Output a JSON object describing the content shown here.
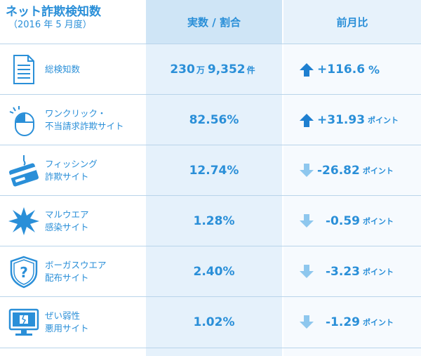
{
  "header": {
    "title": "ネット詐欺検知数",
    "subtitle": "（2016 年 5 月度）",
    "col_value": "実数 / 割合",
    "col_change": "前月比"
  },
  "colors": {
    "text": "#2a8fd8",
    "arrow_up": "#1e7fd0",
    "arrow_down": "#8ec7ee",
    "col_bg": "#e5f1fb",
    "header_bg": "#cfe5f6"
  },
  "rows": [
    {
      "icon": "document-icon",
      "label_lines": [
        "総検知数"
      ],
      "value_a": "230",
      "value_unit_a": "万",
      "value_b": "9,352",
      "value_unit_b": "件",
      "direction": "up",
      "change": "+116.6",
      "change_unit": "%"
    },
    {
      "icon": "mouse-click-icon",
      "label_lines": [
        "ワンクリック・",
        "不当請求詐欺サイト"
      ],
      "value": "82.56%",
      "direction": "up",
      "change": "+31.93",
      "change_unit": "ポイント"
    },
    {
      "icon": "credit-card-hook-icon",
      "label_lines": [
        "フィッシング",
        "詐欺サイト"
      ],
      "value": "12.74%",
      "direction": "down",
      "change": "-26.82",
      "change_unit": "ポイント"
    },
    {
      "icon": "malware-burst-icon",
      "label_lines": [
        "マルウエア",
        "感染サイト"
      ],
      "value": "1.28%",
      "direction": "down",
      "change": "-0.59",
      "change_unit": "ポイント"
    },
    {
      "icon": "shield-question-icon",
      "label_lines": [
        "ボーガスウエア",
        "配布サイト"
      ],
      "value": "2.40%",
      "direction": "down",
      "change": "-3.23",
      "change_unit": "ポイント"
    },
    {
      "icon": "broken-monitor-icon",
      "label_lines": [
        "ぜい弱性",
        "悪用サイト"
      ],
      "value": "1.02%",
      "direction": "down",
      "change": "-1.29",
      "change_unit": "ポイント"
    }
  ]
}
